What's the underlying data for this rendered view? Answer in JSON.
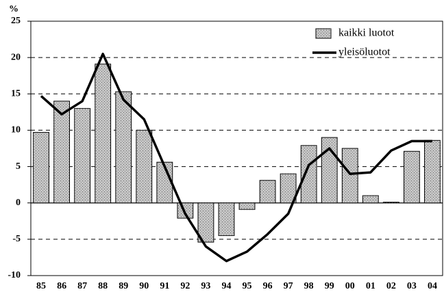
{
  "chart_data": {
    "type": "bar_line",
    "y_unit_label": "%",
    "categories": [
      "85",
      "86",
      "87",
      "88",
      "89",
      "90",
      "91",
      "92",
      "93",
      "94",
      "95",
      "96",
      "97",
      "98",
      "99",
      "00",
      "01",
      "02",
      "03",
      "04"
    ],
    "series": [
      {
        "name": "kaikki luotot",
        "type": "bar",
        "color": "#c4c4c4",
        "values": [
          9.7,
          14.0,
          13.0,
          19.1,
          15.3,
          10.0,
          5.6,
          -2.1,
          -5.4,
          -4.5,
          -0.9,
          3.1,
          4.0,
          7.9,
          9.0,
          7.5,
          1.0,
          0.1,
          7.1,
          8.6
        ]
      },
      {
        "name": "yleisöluotot",
        "type": "line",
        "color": "#000000",
        "values": [
          14.7,
          12.2,
          14.0,
          20.5,
          14.2,
          11.5,
          5.0,
          -1.5,
          -6.0,
          -8.0,
          -6.7,
          -4.3,
          -1.5,
          5.2,
          7.5,
          4.0,
          4.2,
          7.2,
          8.5,
          8.5
        ]
      }
    ],
    "ylim": [
      -10,
      25
    ],
    "yticks": [
      -10,
      -5,
      0,
      5,
      10,
      15,
      20,
      25
    ],
    "grid": true,
    "legend": "upper right"
  }
}
